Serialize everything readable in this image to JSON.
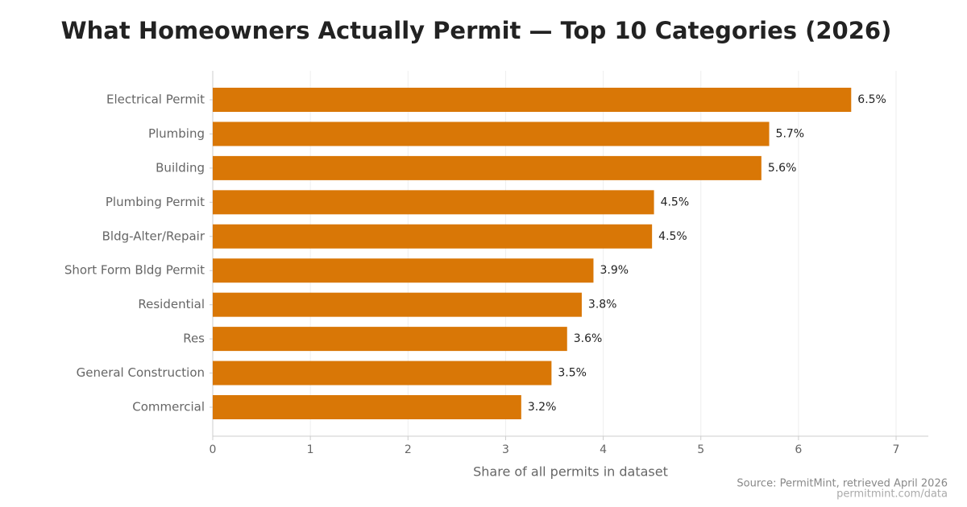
{
  "chart_data": {
    "type": "bar",
    "orientation": "horizontal",
    "title": "What Homeowners Actually Permit — Top 10 Categories (2026)",
    "categories": [
      "Electrical Permit",
      "Plumbing",
      "Building",
      "Plumbing Permit",
      "Bldg-Alter/Repair",
      "Short Form Bldg Permit",
      "Residential",
      "Res",
      "General Construction",
      "Commercial"
    ],
    "values": [
      6.54,
      5.7,
      5.62,
      4.52,
      4.5,
      3.9,
      3.78,
      3.63,
      3.47,
      3.16
    ],
    "value_labels": [
      "6.5%",
      "5.7%",
      "5.6%",
      "4.5%",
      "4.5%",
      "3.9%",
      "3.8%",
      "3.6%",
      "3.5%",
      "3.2%"
    ],
    "color": "#d97706",
    "xlabel": "Share of all permits in dataset",
    "xlim": [
      0,
      7.33
    ],
    "xticks": [
      0,
      1,
      2,
      3,
      4,
      5,
      6,
      7
    ],
    "grid": true,
    "source": "Source: PermitMint, retrieved April 2026",
    "source_url": "permitmint.com/data"
  }
}
